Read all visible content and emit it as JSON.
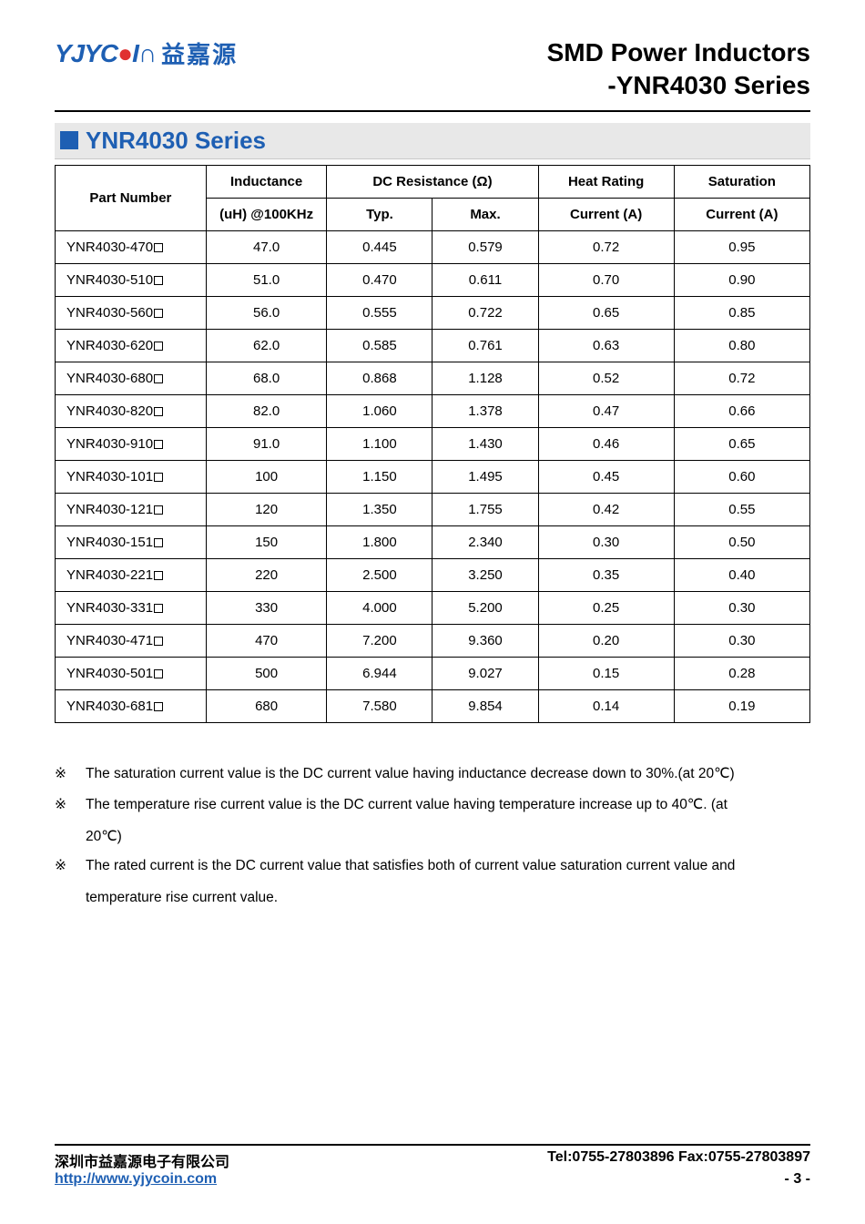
{
  "header": {
    "logo_en": "YJYC",
    "logo_cn": "益嘉源",
    "title_line1": "SMD Power Inductors",
    "title_line2": "-YNR4030 Series"
  },
  "section": {
    "title": "YNR4030 Series"
  },
  "table": {
    "columns": {
      "part_number": "Part Number",
      "inductance_top": "Inductance",
      "inductance_sub": "(uH) @100KHz",
      "dcr_header": "DC Resistance (Ω)",
      "dcr_typ": "Typ.",
      "dcr_max": "Max.",
      "heat_top": "Heat Rating",
      "heat_sub": "Current (A)",
      "sat_top": "Saturation",
      "sat_sub": "Current (A)"
    },
    "rows": [
      {
        "pn": "YNR4030-470",
        "ind": "47.0",
        "typ": "0.445",
        "max": "0.579",
        "heat": "0.72",
        "sat": "0.95"
      },
      {
        "pn": "YNR4030-510",
        "ind": "51.0",
        "typ": "0.470",
        "max": "0.611",
        "heat": "0.70",
        "sat": "0.90"
      },
      {
        "pn": "YNR4030-560",
        "ind": "56.0",
        "typ": "0.555",
        "max": "0.722",
        "heat": "0.65",
        "sat": "0.85"
      },
      {
        "pn": "YNR4030-620",
        "ind": "62.0",
        "typ": "0.585",
        "max": "0.761",
        "heat": "0.63",
        "sat": "0.80"
      },
      {
        "pn": "YNR4030-680",
        "ind": "68.0",
        "typ": "0.868",
        "max": "1.128",
        "heat": "0.52",
        "sat": "0.72"
      },
      {
        "pn": "YNR4030-820",
        "ind": "82.0",
        "typ": "1.060",
        "max": "1.378",
        "heat": "0.47",
        "sat": "0.66"
      },
      {
        "pn": "YNR4030-910",
        "ind": "91.0",
        "typ": "1.100",
        "max": "1.430",
        "heat": "0.46",
        "sat": "0.65"
      },
      {
        "pn": "YNR4030-101",
        "ind": "100",
        "typ": "1.150",
        "max": "1.495",
        "heat": "0.45",
        "sat": "0.60"
      },
      {
        "pn": "YNR4030-121",
        "ind": "120",
        "typ": "1.350",
        "max": "1.755",
        "heat": "0.42",
        "sat": "0.55"
      },
      {
        "pn": "YNR4030-151",
        "ind": "150",
        "typ": "1.800",
        "max": "2.340",
        "heat": "0.30",
        "sat": "0.50"
      },
      {
        "pn": "YNR4030-221",
        "ind": "220",
        "typ": "2.500",
        "max": "3.250",
        "heat": "0.35",
        "sat": "0.40"
      },
      {
        "pn": "YNR4030-331",
        "ind": "330",
        "typ": "4.000",
        "max": "5.200",
        "heat": "0.25",
        "sat": "0.30"
      },
      {
        "pn": "YNR4030-471",
        "ind": "470",
        "typ": "7.200",
        "max": "9.360",
        "heat": "0.20",
        "sat": "0.30"
      },
      {
        "pn": "YNR4030-501",
        "ind": "500",
        "typ": "6.944",
        "max": "9.027",
        "heat": "0.15",
        "sat": "0.28"
      },
      {
        "pn": "YNR4030-681",
        "ind": "680",
        "typ": "7.580",
        "max": "9.854",
        "heat": "0.14",
        "sat": "0.19"
      }
    ],
    "col_widths": [
      "20%",
      "16%",
      "14%",
      "14%",
      "18%",
      "18%"
    ],
    "border_color": "#000000",
    "header_bg": "#ffffff"
  },
  "notes": {
    "mark": "※",
    "n1": "The saturation current value is the DC current value having inductance decrease down to 30%.(at 20℃)",
    "n2a": "The temperature rise current value is the DC current value having temperature increase up to 40℃. (at",
    "n2b": "20℃)",
    "n3a": "The rated current is the DC current value that satisfies both of current value saturation current value and",
    "n3b": "temperature rise current value."
  },
  "footer": {
    "company": "深圳市益嘉源电子有限公司",
    "tel_fax": "Tel:0755-27803896   Fax:0755-27803897",
    "url": "http://www.yjycoin.com",
    "page": "- 3 -"
  },
  "colors": {
    "brand_blue": "#1e5fb3",
    "section_bg": "#e8e8e8",
    "text": "#000000"
  }
}
